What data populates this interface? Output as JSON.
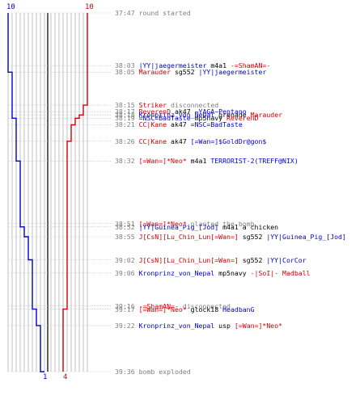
{
  "chart_data": {
    "type": "line",
    "title": "",
    "xlabel": "",
    "ylabel": "",
    "time_range": [
      "37:47",
      "39:36"
    ],
    "colors": {
      "blue": "#0000cc",
      "red": "#cc0000",
      "gray": "#808080",
      "grid": "#c0c0c0",
      "center": "#606060"
    },
    "team_labels": {
      "blue_start": "10",
      "red_start": "10",
      "blue_end": "1",
      "red_end": "4"
    },
    "series": [
      {
        "team": "blue",
        "points": [
          {
            "t": "37:47",
            "alive": 10
          },
          {
            "t": "38:03",
            "alive": 10
          },
          {
            "t": "38:05",
            "alive": 9
          },
          {
            "t": "38:15",
            "alive": 9
          },
          {
            "t": "38:17",
            "alive": 9
          },
          {
            "t": "38:18",
            "alive": 9
          },
          {
            "t": "38:19",
            "alive": 8
          },
          {
            "t": "38:21",
            "alive": 8
          },
          {
            "t": "38:26",
            "alive": 8
          },
          {
            "t": "38:32",
            "alive": 7
          },
          {
            "t": "38:51",
            "alive": 7
          },
          {
            "t": "38:52",
            "alive": 6
          },
          {
            "t": "38:55",
            "alive": 5
          },
          {
            "t": "39:02",
            "alive": 4
          },
          {
            "t": "39:06",
            "alive": 4
          },
          {
            "t": "39:16",
            "alive": 4
          },
          {
            "t": "39:17",
            "alive": 3
          },
          {
            "t": "39:22",
            "alive": 2
          },
          {
            "t": "39:36",
            "alive": 1
          }
        ]
      },
      {
        "team": "red",
        "points": [
          {
            "t": "37:47",
            "alive": 10
          },
          {
            "t": "38:03",
            "alive": 10
          },
          {
            "t": "38:05",
            "alive": 10
          },
          {
            "t": "38:15",
            "alive": 9
          },
          {
            "t": "38:17",
            "alive": 9
          },
          {
            "t": "38:18",
            "alive": 8
          },
          {
            "t": "38:19",
            "alive": 7
          },
          {
            "t": "38:21",
            "alive": 6
          },
          {
            "t": "38:26",
            "alive": 5
          },
          {
            "t": "38:32",
            "alive": 5
          },
          {
            "t": "39:06",
            "alive": 5
          },
          {
            "t": "39:16",
            "alive": 5
          },
          {
            "t": "39:17",
            "alive": 4
          },
          {
            "t": "39:22",
            "alive": 4
          },
          {
            "t": "39:36",
            "alive": 4
          }
        ]
      }
    ],
    "events": [
      {
        "time": "37:47",
        "parts": [
          {
            "text": "round started",
            "color": "gray"
          }
        ]
      },
      {
        "time": "38:03",
        "parts": [
          {
            "text": "|YY|jaegermeister",
            "color": "blue"
          },
          {
            "text": " m4a1 ",
            "color": "black"
          },
          {
            "text": "-=ShamAN=-",
            "color": "red"
          }
        ]
      },
      {
        "time": "38:05",
        "parts": [
          {
            "text": "Marauder",
            "color": "red"
          },
          {
            "text": " sg552 ",
            "color": "black"
          },
          {
            "text": "|YY|jaegermeister",
            "color": "blue"
          }
        ]
      },
      {
        "time": "38:15",
        "parts": [
          {
            "text": "Striker",
            "color": "red"
          },
          {
            "text": " disconnected",
            "color": "gray"
          }
        ]
      },
      {
        "time": "38:17",
        "parts": [
          {
            "text": "ReverenD",
            "color": "red"
          },
          {
            "text": " ak47 ",
            "color": "black"
          },
          {
            "text": "~YAGA~Pentano",
            "color": "blue"
          }
        ]
      },
      {
        "time": "38:18",
        "parts": [
          {
            "text": "Kronprinz_von_Nepal",
            "color": "blue"
          },
          {
            "text": " grenade ",
            "color": "black"
          },
          {
            "text": "Marauder",
            "color": "red"
          }
        ]
      },
      {
        "time": "38:19",
        "parts": [
          {
            "text": "=NSC=BadTaste",
            "color": "blue"
          },
          {
            "text": " mp5navy ",
            "color": "black"
          },
          {
            "text": "ReverenD",
            "color": "red"
          }
        ]
      },
      {
        "time": "38:21",
        "parts": [
          {
            "text": "CC|Kane",
            "color": "red"
          },
          {
            "text": " ak47 ",
            "color": "black"
          },
          {
            "text": "=NSC=BadTaste",
            "color": "blue"
          }
        ]
      },
      {
        "time": "38:26",
        "parts": [
          {
            "text": "CC|Kane",
            "color": "red"
          },
          {
            "text": " ak47 ",
            "color": "black"
          },
          {
            "text": "[=Wan=]$GoldDr@gon$",
            "color": "blue"
          }
        ]
      },
      {
        "time": "38:32",
        "parts": [
          {
            "text": "[=Wan=]*Neo*",
            "color": "red"
          },
          {
            "text": " m4a1 ",
            "color": "black"
          },
          {
            "text": "TERRORIST-2(TREFF@NIX)",
            "color": "blue"
          }
        ]
      },
      {
        "time": "38:51",
        "parts": [
          {
            "text": "[=Wan=]*Neo*",
            "color": "red"
          },
          {
            "text": " planted the bomb",
            "color": "gray"
          }
        ]
      },
      {
        "time": "38:52",
        "parts": [
          {
            "text": "|YY|Guinea_Pig_[Jod]",
            "color": "blue"
          },
          {
            "text": " m4a1 a chicken",
            "color": "black"
          }
        ]
      },
      {
        "time": "38:55",
        "parts": [
          {
            "text": "J[CsN][Lu_Chin_Lun[=Wan=]",
            "color": "red"
          },
          {
            "text": " sg552 ",
            "color": "black"
          },
          {
            "text": "|YY|Guinea_Pig_[Jod]",
            "color": "blue"
          }
        ]
      },
      {
        "time": "39:02",
        "parts": [
          {
            "text": "J[CsN][Lu_Chin_Lun[=Wan=]",
            "color": "red"
          },
          {
            "text": " sg552 ",
            "color": "black"
          },
          {
            "text": "|YY|CorCor",
            "color": "blue"
          }
        ]
      },
      {
        "time": "39:06",
        "parts": [
          {
            "text": "Kronprinz_von_Nepal",
            "color": "blue"
          },
          {
            "text": " mp5navy ",
            "color": "black"
          },
          {
            "text": "-|SoI|- Madball",
            "color": "red"
          }
        ]
      },
      {
        "time": "39:16",
        "parts": [
          {
            "text": "-=ShamAN=-",
            "color": "red"
          },
          {
            "text": " disconnected",
            "color": "gray"
          }
        ]
      },
      {
        "time": "39:17",
        "parts": [
          {
            "text": "[=Wan=]*Neo*",
            "color": "red"
          },
          {
            "text": " glock18 ",
            "color": "black"
          },
          {
            "text": "HeadbanG",
            "color": "blue"
          }
        ]
      },
      {
        "time": "39:22",
        "parts": [
          {
            "text": "Kronprinz_von_Nepal",
            "color": "blue"
          },
          {
            "text": " usp ",
            "color": "black"
          },
          {
            "text": "[=Wan=]*Neo*",
            "color": "red"
          }
        ]
      },
      {
        "time": "39:36",
        "parts": [
          {
            "text": "bomb exploded",
            "color": "gray"
          }
        ]
      }
    ]
  }
}
